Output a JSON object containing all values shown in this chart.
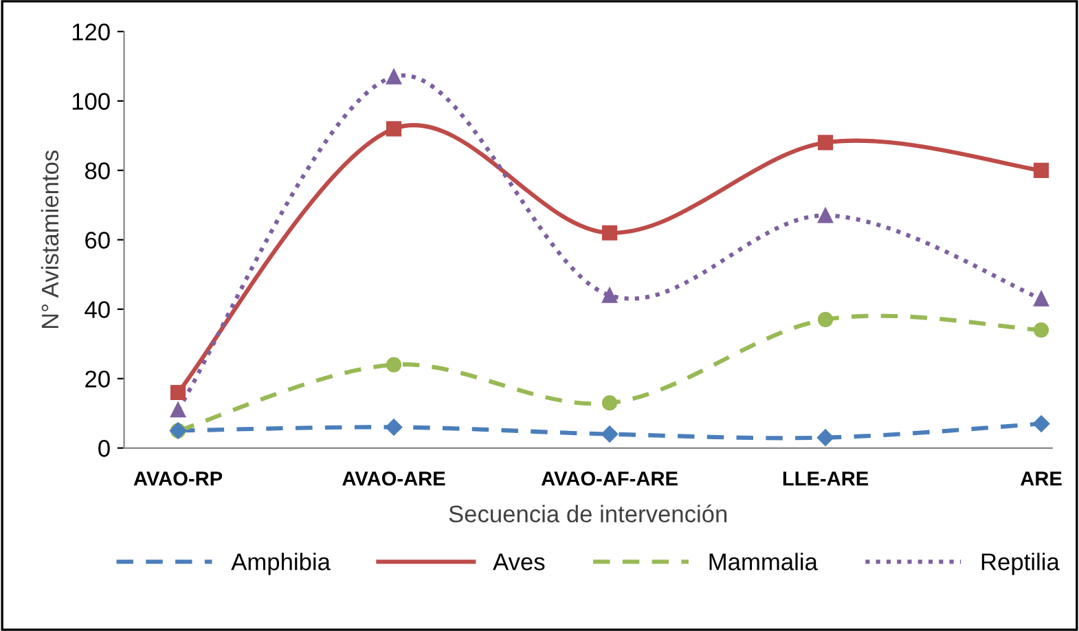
{
  "chart_data": {
    "type": "line",
    "xlabel": "Secuencia de intervención",
    "ylabel": "N° Avistamientos",
    "categories": [
      "AVAO-RP",
      "AVAO-ARE",
      "AVAO-AF-ARE",
      "LLE-ARE",
      "ARE"
    ],
    "series": [
      {
        "name": "Amphibia",
        "color": "#4a7ebb",
        "values": [
          5,
          6,
          4,
          3,
          7
        ],
        "marker": "diamond",
        "line_style": "dashed"
      },
      {
        "name": "Aves",
        "color": "#be4b48",
        "values": [
          16,
          92,
          62,
          88,
          80
        ],
        "marker": "square",
        "line_style": "solid"
      },
      {
        "name": "Mammalia",
        "color": "#98b954",
        "values": [
          5,
          24,
          13,
          37,
          34
        ],
        "marker": "circle",
        "line_style": "dashed"
      },
      {
        "name": "Reptilia",
        "color": "#7d60a0",
        "values": [
          11,
          107,
          44,
          67,
          43
        ],
        "marker": "triangle",
        "line_style": "dotted"
      }
    ],
    "ylim": [
      0,
      120
    ],
    "yticks": [
      0,
      20,
      40,
      60,
      80,
      100,
      120
    ],
    "grid": false,
    "legend": "bottom"
  }
}
